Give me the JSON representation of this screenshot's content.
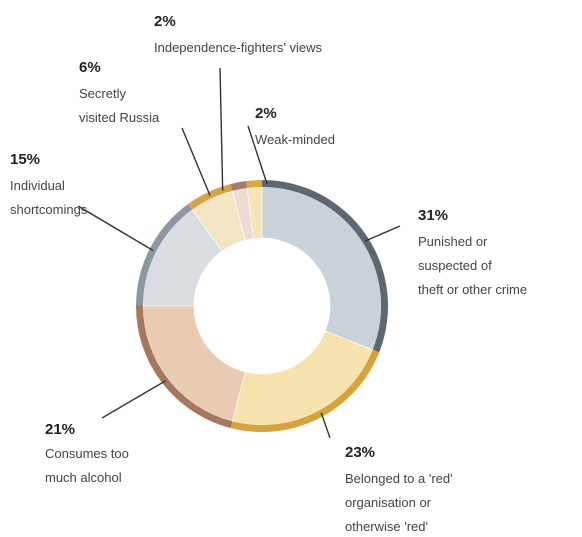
{
  "chart_data": {
    "type": "pie",
    "donut": true,
    "title": "",
    "slices": [
      {
        "percent": "31%",
        "value": 31,
        "label_lines": [
          "Punished or",
          "suspected of",
          "theft or other crime"
        ],
        "color": "#c9d2d8",
        "edge": "#5d6873"
      },
      {
        "percent": "23%",
        "value": 23,
        "label_lines": [
          "Belonged to a 'red'",
          "organisation or",
          "otherwise 'red'"
        ],
        "color": "#f6e2ad",
        "edge": "#d7a33a"
      },
      {
        "percent": "21%",
        "value": 21,
        "label_lines": [
          "Consumes too",
          "much alcohol"
        ],
        "color": "#e9cbb3",
        "edge": "#a8785c"
      },
      {
        "percent": "15%",
        "value": 15,
        "label_lines": [
          "Individual",
          "shortcomings"
        ],
        "color": "#d9dde2",
        "edge": "#8d97a1"
      },
      {
        "percent": "6%",
        "value": 6,
        "label_lines": [
          "Secretly",
          "visited Russia"
        ],
        "color": "#f3e4c4",
        "edge": "#d4a447"
      },
      {
        "percent": "2%",
        "value": 2,
        "label_lines": [
          "Independence-fighters' views"
        ],
        "color": "#eddbd3",
        "edge": "#a47a6b"
      },
      {
        "percent": "2%",
        "value": 2,
        "label_lines": [
          "Weak-minded"
        ],
        "color": "#f6e4b6",
        "edge": "#d9ab3e"
      }
    ]
  }
}
